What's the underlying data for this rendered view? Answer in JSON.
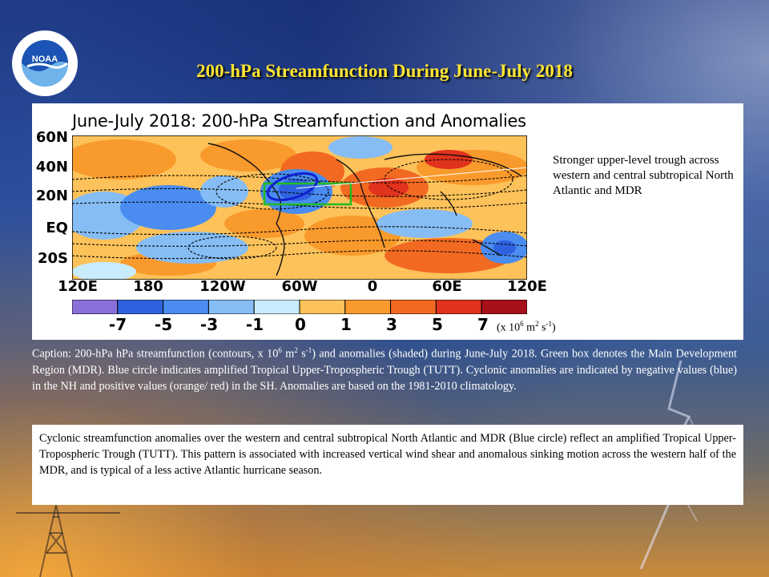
{
  "slide": {
    "title": "200-hPa Streamfunction During June-July 2018",
    "logo_text": "NOAA"
  },
  "figure": {
    "title": "June-July 2018: 200-hPa Streamfunction and Anomalies",
    "side_note": "Stronger upper-level trough across western and central subtropical North Atlantic and MDR",
    "units_prefix": "(x 10",
    "units_exp": "6",
    "units_mid1": " m",
    "units_exp2": "2",
    "units_mid2": " s",
    "units_exp3": "-1",
    "units_suffix": ")"
  },
  "chart_data": {
    "type": "heatmap",
    "title": "June-July 2018: 200-hPa Streamfunction and Anomalies",
    "y_tick_labels": [
      "60N",
      "40N",
      "20N",
      "EQ",
      "20S"
    ],
    "x_tick_labels": [
      "120E",
      "180",
      "120W",
      "60W",
      "0",
      "60E",
      "120E"
    ],
    "colorbar": {
      "labels": [
        "-7",
        "-5",
        "-3",
        "-1",
        "0",
        "1",
        "3",
        "5",
        "7"
      ],
      "colors": [
        "#8a6fd9",
        "#2f62e0",
        "#4a8cf0",
        "#86bdf5",
        "#c8ecfb",
        "#fdc259",
        "#f99a2c",
        "#f26a22",
        "#e0321c",
        "#a8101a"
      ]
    },
    "annotations": [
      {
        "type": "box",
        "color": "#22bb22",
        "label": "MDR"
      },
      {
        "type": "ellipse",
        "color": "#1020d0",
        "label": "TUTT"
      }
    ]
  },
  "caption": {
    "p1": "Caption: 200-hPa hPa streamfunction (contours, x 10",
    "p1_exp": "6",
    "p2": " m",
    "p2_exp": "2",
    "p3": " s",
    "p3_exp": "-1",
    "p4": ") and anomalies (shaded) during June-July 2018. Green box denotes the Main Development Region (MDR). Blue circle indicates amplified Tropical Upper-Tropospheric Trough (TUTT). Cyclonic anomalies are indicated by negative values (blue) in the NH and positive values (orange/ red) in the SH. Anomalies are based on the 1981-2010 climatology."
  },
  "summary": {
    "text": "Cyclonic streamfunction anomalies over the western and central subtropical North Atlantic and MDR (Blue circle) reflect an amplified Tropical Upper-Tropospheric Trough (TUTT). This pattern is associated with increased vertical wind shear and anomalous sinking motion across the western half of the MDR, and is typical of a less active Atlantic hurricane season."
  }
}
